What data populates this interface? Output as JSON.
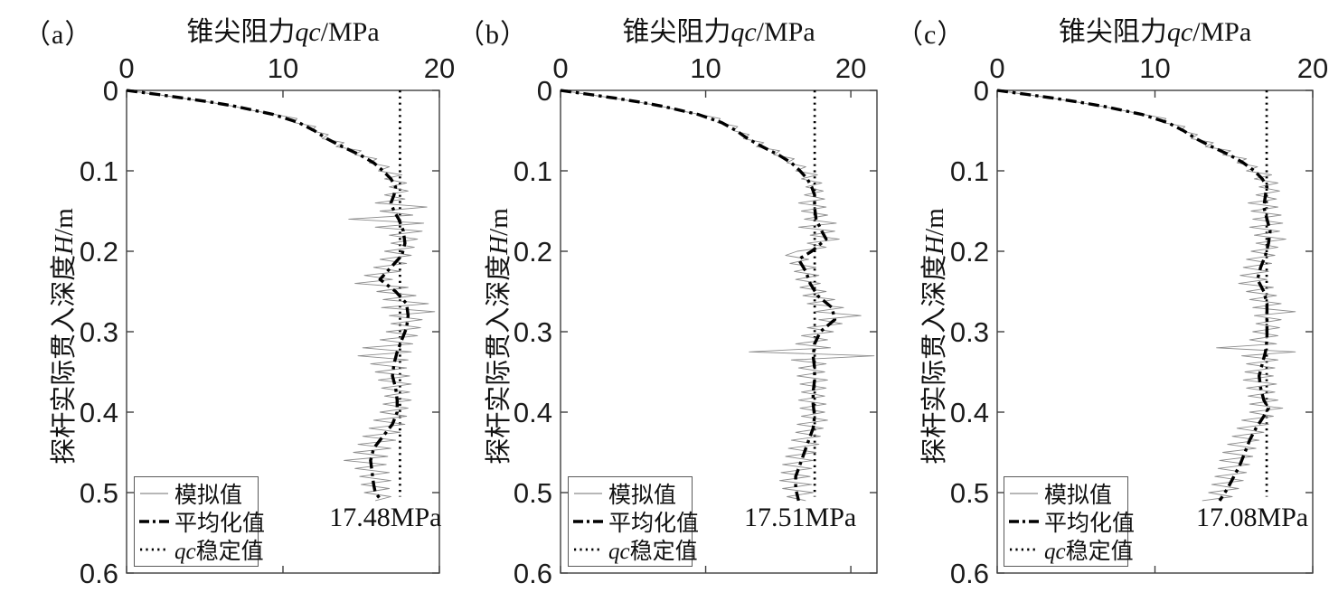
{
  "figure_labels": {
    "legend_items": [
      {
        "label": "模拟值"
      },
      {
        "label": "平均化值"
      },
      {
        "label_italic_prefix": "qc",
        "label": "稳定值"
      }
    ]
  },
  "chart_data": [
    {
      "type": "line",
      "panel_label": "（a）",
      "title": {
        "prefix": "锥尖阻力",
        "italic": "qc",
        "suffix": "/MPa",
        "full": "锥尖阻力qc/MPa"
      },
      "ylabel": {
        "prefix": "探杆实际贯入深度",
        "italic": "H",
        "suffix": "/m",
        "full": "探杆实际贯入深度H/m"
      },
      "xlim": [
        0,
        20
      ],
      "ylim": [
        0,
        0.6
      ],
      "xticks": [
        0,
        10,
        20
      ],
      "yticks": [
        0,
        0.1,
        0.2,
        0.3,
        0.4,
        0.5,
        0.6
      ],
      "legend_position": "lower-left",
      "x_axis_location": "top",
      "grid": false,
      "series": {
        "simulated": {
          "d0": 0,
          "dstep": 0.005,
          "qc_MPa": [
            0,
            1.9,
            3.7,
            5.4,
            6.9,
            8.1,
            9.5,
            10.9,
            10.7,
            12.1,
            11.8,
            12.9,
            12.5,
            13.9,
            13.4,
            15.0,
            14.6,
            16.0,
            15.5,
            16.8,
            16.1,
            17.6,
            16.5,
            17.9,
            16.8,
            18.0,
            16.5,
            17.8,
            15.9,
            19.2,
            16.2,
            18.3,
            14.2,
            19.0,
            15.9,
            18.9,
            16.8,
            18.6,
            16.9,
            18.4,
            16.5,
            18.2,
            16.2,
            17.9,
            15.8,
            17.5,
            15.2,
            17.0,
            14.6,
            18.0,
            16.0,
            18.5,
            16.4,
            19.3,
            16.3,
            19.7,
            16.8,
            18.9,
            16.9,
            18.8,
            16.6,
            18.6,
            16.2,
            18.3,
            15.1,
            18.2,
            14.8,
            18.0,
            15.6,
            17.9,
            15.9,
            18.1,
            16.1,
            18.2,
            16.3,
            18.1,
            16.5,
            18.2,
            16.4,
            18.0,
            16.2,
            17.9,
            15.8,
            17.8,
            15.5,
            17.5,
            15.1,
            17.2,
            14.8,
            16.9,
            14.5,
            16.7,
            13.9,
            16.6,
            14.6,
            16.8,
            14.9,
            16.9,
            15.0,
            16.8,
            15.2,
            16.9,
            15.9
          ]
        },
        "averaged": {
          "points_depth_qc": [
            [
              0,
              0
            ],
            [
              0.005,
              2.0
            ],
            [
              0.01,
              3.8
            ],
            [
              0.015,
              5.5
            ],
            [
              0.02,
              7.0
            ],
            [
              0.03,
              9.4
            ],
            [
              0.04,
              11.0
            ],
            [
              0.05,
              12.0
            ],
            [
              0.06,
              12.8
            ],
            [
              0.07,
              13.8
            ],
            [
              0.08,
              14.9
            ],
            [
              0.09,
              15.8
            ],
            [
              0.1,
              16.4
            ],
            [
              0.11,
              16.9
            ],
            [
              0.12,
              17.2
            ],
            [
              0.13,
              17.1
            ],
            [
              0.14,
              16.9
            ],
            [
              0.15,
              17.1
            ],
            [
              0.16,
              17.4
            ],
            [
              0.175,
              17.7
            ],
            [
              0.19,
              17.8
            ],
            [
              0.205,
              17.6
            ],
            [
              0.22,
              16.9
            ],
            [
              0.235,
              16.2
            ],
            [
              0.25,
              17.2
            ],
            [
              0.265,
              17.9
            ],
            [
              0.28,
              18.0
            ],
            [
              0.295,
              17.9
            ],
            [
              0.31,
              17.6
            ],
            [
              0.325,
              17.3
            ],
            [
              0.34,
              17.1
            ],
            [
              0.355,
              17.0
            ],
            [
              0.37,
              17.2
            ],
            [
              0.385,
              17.3
            ],
            [
              0.4,
              17.3
            ],
            [
              0.415,
              17.0
            ],
            [
              0.43,
              16.4
            ],
            [
              0.445,
              15.8
            ],
            [
              0.46,
              15.6
            ],
            [
              0.475,
              15.7
            ],
            [
              0.49,
              15.8
            ],
            [
              0.5,
              15.9
            ],
            [
              0.51,
              16.3
            ]
          ]
        },
        "stable": {
          "qc_MPa": 17.48,
          "depth_range_m": [
            0,
            0.505
          ],
          "annotation": "17.48MPa"
        }
      }
    },
    {
      "type": "line",
      "panel_label": "（b）",
      "title": {
        "prefix": "锥尖阻力",
        "italic": "qc",
        "suffix": "/MPa",
        "full": "锥尖阻力qc/MPa"
      },
      "ylabel": {
        "prefix": "探杆实际贯入深度",
        "italic": "H",
        "suffix": "/m",
        "full": "探杆实际贯入深度H/m"
      },
      "xlim": [
        0,
        21.8
      ],
      "ylim": [
        0,
        0.6
      ],
      "xticks": [
        0,
        10,
        20
      ],
      "yticks": [
        0,
        0.1,
        0.2,
        0.3,
        0.4,
        0.5,
        0.6
      ],
      "legend_position": "lower-left",
      "x_axis_location": "top",
      "grid": false,
      "series": {
        "simulated": {
          "d0": 0,
          "dstep": 0.005,
          "qc_MPa": [
            0,
            1.9,
            3.8,
            5.5,
            7.0,
            8.2,
            9.6,
            11.0,
            10.8,
            12.2,
            11.9,
            13.0,
            12.6,
            14.0,
            13.5,
            15.1,
            14.7,
            16.1,
            15.6,
            16.9,
            16.2,
            17.7,
            16.6,
            18.0,
            16.9,
            18.1,
            16.8,
            18.2,
            16.4,
            18.3,
            16.6,
            18.4,
            16.8,
            19.0,
            16.4,
            18.9,
            17.2,
            19.2,
            17.0,
            18.3,
            16.3,
            15.5,
            17.1,
            15.8,
            17.6,
            16.1,
            17.8,
            16.2,
            17.9,
            16.5,
            18.3,
            16.7,
            18.9,
            17.0,
            19.5,
            17.5,
            20.7,
            17.8,
            19.4,
            17.0,
            18.8,
            16.6,
            18.4,
            16.2,
            18.6,
            13.0,
            21.6,
            15.9,
            18.3,
            16.4,
            18.2,
            16.3,
            18.4,
            16.5,
            18.3,
            16.6,
            18.2,
            16.4,
            18.3,
            16.5,
            18.2,
            16.6,
            18.4,
            16.3,
            18.1,
            16.2,
            17.9,
            15.9,
            17.8,
            15.7,
            17.6,
            15.5,
            17.4,
            15.3,
            17.3,
            15.2,
            17.2,
            15.1,
            17.3,
            15.3,
            17.4,
            15.6,
            16.9
          ]
        },
        "averaged": {
          "points_depth_qc": [
            [
              0,
              0
            ],
            [
              0.005,
              2.0
            ],
            [
              0.01,
              3.9
            ],
            [
              0.015,
              5.6
            ],
            [
              0.02,
              7.1
            ],
            [
              0.03,
              9.5
            ],
            [
              0.04,
              11.1
            ],
            [
              0.05,
              12.1
            ],
            [
              0.06,
              12.9
            ],
            [
              0.07,
              13.9
            ],
            [
              0.08,
              15.0
            ],
            [
              0.09,
              15.9
            ],
            [
              0.1,
              16.5
            ],
            [
              0.11,
              17.0
            ],
            [
              0.12,
              17.3
            ],
            [
              0.13,
              17.5
            ],
            [
              0.145,
              17.5
            ],
            [
              0.16,
              17.6
            ],
            [
              0.175,
              18.0
            ],
            [
              0.185,
              18.3
            ],
            [
              0.2,
              17.3
            ],
            [
              0.21,
              16.4
            ],
            [
              0.225,
              16.9
            ],
            [
              0.24,
              17.2
            ],
            [
              0.255,
              17.7
            ],
            [
              0.27,
              18.7
            ],
            [
              0.285,
              18.9
            ],
            [
              0.3,
              17.9
            ],
            [
              0.315,
              17.5
            ],
            [
              0.33,
              17.4
            ],
            [
              0.345,
              17.5
            ],
            [
              0.36,
              17.5
            ],
            [
              0.375,
              17.4
            ],
            [
              0.39,
              17.4
            ],
            [
              0.405,
              17.5
            ],
            [
              0.42,
              17.4
            ],
            [
              0.435,
              17.1
            ],
            [
              0.45,
              16.8
            ],
            [
              0.465,
              16.5
            ],
            [
              0.48,
              16.2
            ],
            [
              0.495,
              16.2
            ],
            [
              0.51,
              16.4
            ]
          ]
        },
        "stable": {
          "qc_MPa": 17.51,
          "depth_range_m": [
            0,
            0.505
          ],
          "annotation": "17.51MPa"
        }
      }
    },
    {
      "type": "line",
      "panel_label": "（c）",
      "title": {
        "prefix": "锥尖阻力",
        "italic": "qc",
        "suffix": "/MPa",
        "full": "锥尖阻力qc/MPa"
      },
      "ylabel": {
        "prefix": "探杆实际贯入深度",
        "italic": "H",
        "suffix": "/m",
        "full": "探杆实际贯入深度H/m"
      },
      "xlim": [
        0,
        20
      ],
      "ylim": [
        0,
        0.6
      ],
      "xticks": [
        0,
        10,
        20
      ],
      "yticks": [
        0,
        0.1,
        0.2,
        0.3,
        0.4,
        0.5,
        0.6
      ],
      "legend_position": "lower-left",
      "x_axis_location": "top",
      "grid": false,
      "series": {
        "simulated": {
          "d0": 0,
          "dstep": 0.005,
          "qc_MPa": [
            0,
            1.8,
            3.6,
            5.2,
            6.7,
            8.0,
            9.3,
            10.7,
            10.5,
            11.9,
            11.6,
            12.7,
            12.3,
            13.7,
            13.2,
            14.8,
            14.3,
            15.8,
            15.2,
            16.5,
            15.8,
            17.4,
            16.3,
            17.8,
            16.6,
            17.9,
            16.4,
            17.7,
            15.9,
            17.8,
            16.1,
            18.0,
            16.2,
            18.1,
            16.0,
            17.9,
            16.3,
            18.3,
            16.4,
            17.8,
            16.1,
            17.6,
            15.8,
            17.4,
            15.6,
            17.2,
            15.4,
            17.1,
            15.3,
            17.5,
            15.8,
            17.7,
            16.0,
            18.0,
            16.2,
            18.9,
            16.3,
            18.0,
            16.4,
            17.9,
            16.2,
            17.8,
            16.0,
            17.7,
            13.9,
            18.9,
            15.5,
            17.8,
            15.8,
            17.6,
            15.7,
            17.5,
            15.6,
            17.7,
            15.8,
            17.6,
            15.9,
            17.8,
            16.0,
            18.1,
            16.0,
            17.5,
            15.5,
            17.2,
            15.2,
            16.9,
            14.9,
            16.6,
            14.6,
            16.4,
            14.3,
            16.2,
            14.1,
            16.0,
            14.0,
            15.8,
            13.8,
            15.6,
            13.6,
            15.3,
            13.4,
            14.9,
            13.0
          ]
        },
        "averaged": {
          "points_depth_qc": [
            [
              0,
              0
            ],
            [
              0.005,
              1.9
            ],
            [
              0.01,
              3.7
            ],
            [
              0.015,
              5.3
            ],
            [
              0.02,
              6.8
            ],
            [
              0.03,
              9.2
            ],
            [
              0.04,
              10.8
            ],
            [
              0.05,
              11.8
            ],
            [
              0.06,
              12.6
            ],
            [
              0.07,
              13.6
            ],
            [
              0.08,
              14.7
            ],
            [
              0.09,
              15.6
            ],
            [
              0.1,
              16.3
            ],
            [
              0.11,
              16.8
            ],
            [
              0.12,
              17.1
            ],
            [
              0.13,
              17.0
            ],
            [
              0.145,
              16.9
            ],
            [
              0.16,
              17.1
            ],
            [
              0.175,
              17.3
            ],
            [
              0.19,
              17.2
            ],
            [
              0.205,
              17.0
            ],
            [
              0.22,
              16.7
            ],
            [
              0.235,
              16.5
            ],
            [
              0.25,
              16.9
            ],
            [
              0.265,
              17.1
            ],
            [
              0.28,
              17.1
            ],
            [
              0.295,
              17.1
            ],
            [
              0.31,
              17.1
            ],
            [
              0.325,
              17.0
            ],
            [
              0.34,
              16.8
            ],
            [
              0.355,
              16.6
            ],
            [
              0.37,
              16.7
            ],
            [
              0.385,
              16.9
            ],
            [
              0.395,
              17.2
            ],
            [
              0.405,
              16.9
            ],
            [
              0.42,
              16.4
            ],
            [
              0.435,
              16.0
            ],
            [
              0.45,
              15.7
            ],
            [
              0.465,
              15.4
            ],
            [
              0.48,
              15.0
            ],
            [
              0.495,
              14.6
            ],
            [
              0.51,
              14.1
            ]
          ]
        },
        "stable": {
          "qc_MPa": 17.08,
          "depth_range_m": [
            0,
            0.505
          ],
          "annotation": "17.08MPa"
        }
      }
    }
  ]
}
